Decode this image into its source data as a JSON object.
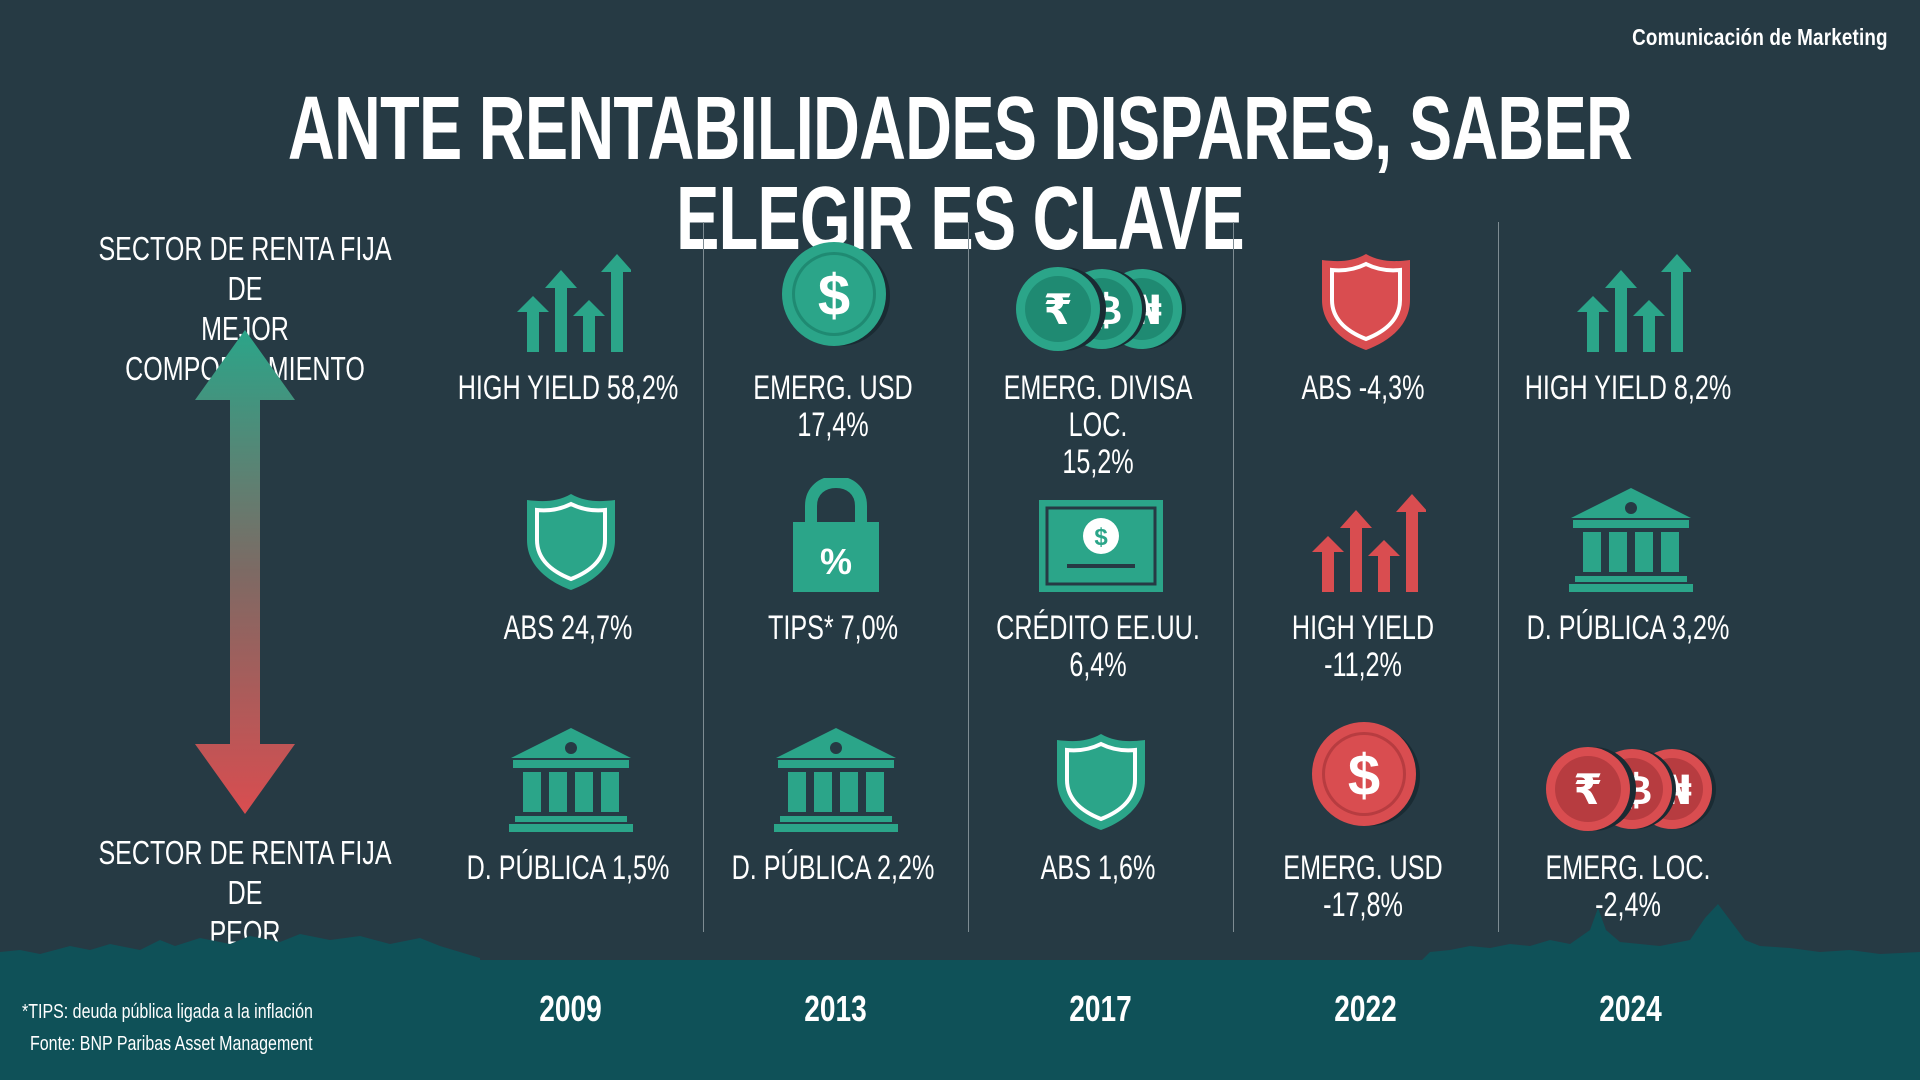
{
  "brand": "Comunicación de Marketing",
  "title": "ANTE RENTABILIDADES DISPARES, SABER ELEGIR ES CLAVE",
  "axis": {
    "top_line1": "SECTOR DE RENTA FIJA DE",
    "top_line2": "MEJOR COMPORTAMIENTO",
    "bottom_line1": "SECTOR DE RENTA FIJA DE",
    "bottom_line2": "PEOR COMPORTAMIENTO"
  },
  "colors": {
    "background": "#263a44",
    "positive": "#2ba589",
    "negative": "#d94d50",
    "footer": "#0f5158"
  },
  "columns": [
    {
      "year": "2009",
      "items": [
        {
          "icon": "bar-chart-arrows-icon",
          "label": "HIGH YIELD 58,2%",
          "value": 58.2,
          "color": "positive"
        },
        {
          "icon": "shield-icon",
          "label": "ABS 24,7%",
          "value": 24.7,
          "color": "positive"
        },
        {
          "icon": "bank-icon",
          "label": "D. PÚBLICA 1,5%",
          "value": 1.5,
          "color": "positive"
        }
      ]
    },
    {
      "year": "2013",
      "items": [
        {
          "icon": "dollar-coin-icon",
          "label": "EMERG. USD 17,4%",
          "value": 17.4,
          "color": "positive"
        },
        {
          "icon": "padlock-percent-icon",
          "label": "TIPS* 7,0%",
          "value": 7.0,
          "color": "positive"
        },
        {
          "icon": "bank-icon",
          "label": "D. PÚBLICA 2,2%",
          "value": 2.2,
          "color": "positive"
        }
      ]
    },
    {
      "year": "2017",
      "items": [
        {
          "icon": "currency-coins-icon",
          "label": "EMERG. DIVISA LOC. 15,2%",
          "value": 15.2,
          "color": "positive"
        },
        {
          "icon": "banknote-icon",
          "label": "CRÉDITO EE.UU. 6,4%",
          "value": 6.4,
          "color": "positive"
        },
        {
          "icon": "shield-icon",
          "label": "ABS 1,6%",
          "value": 1.6,
          "color": "positive"
        }
      ]
    },
    {
      "year": "2022",
      "items": [
        {
          "icon": "shield-icon",
          "label": "ABS -4,3%",
          "value": -4.3,
          "color": "negative"
        },
        {
          "icon": "bar-chart-arrows-icon",
          "label": "HIGH YIELD -11,2%",
          "value": -11.2,
          "color": "negative"
        },
        {
          "icon": "dollar-coin-icon",
          "label": "EMERG. USD -17,8%",
          "value": -17.8,
          "color": "negative"
        }
      ]
    },
    {
      "year": "2024",
      "items": [
        {
          "icon": "bar-chart-arrows-icon",
          "label": "HIGH YIELD 8,2%",
          "value": 8.2,
          "color": "positive"
        },
        {
          "icon": "bank-icon",
          "label": "D. PÚBLICA 3,2%",
          "value": 3.2,
          "color": "positive"
        },
        {
          "icon": "currency-coins-icon",
          "label": "EMERG. LOC. -2,4%",
          "value": -2.4,
          "color": "negative"
        }
      ]
    }
  ],
  "footnotes": {
    "tips": "*TIPS: deuda pública ligada a la inflación",
    "source": "Fonte: BNP Paribas Asset Management"
  }
}
